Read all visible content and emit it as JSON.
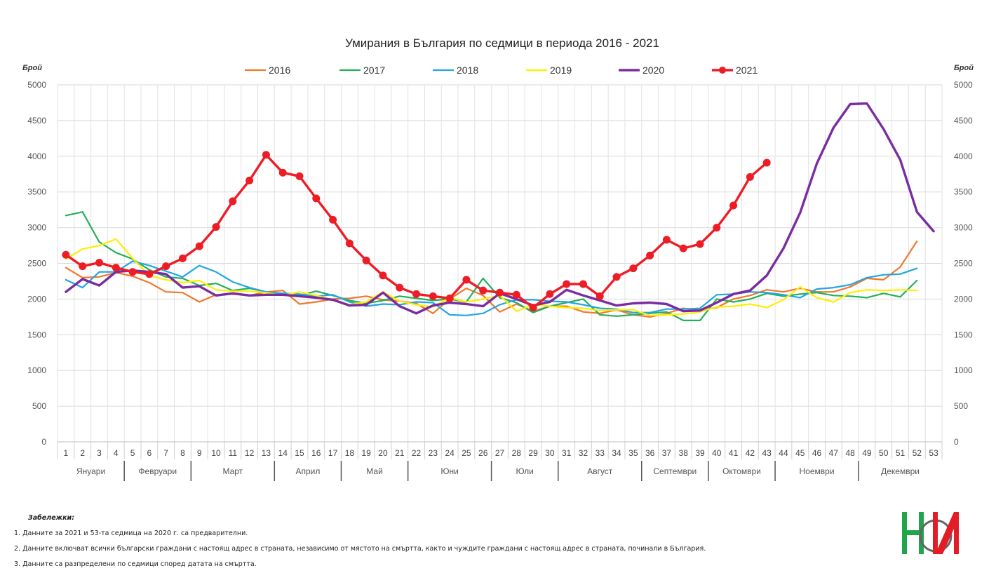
{
  "chart_data": {
    "type": "line",
    "title": "Умирания в България по седмици в периода 2016 - 2021",
    "ylabel_left": "Брой",
    "ylabel_right": "Брой",
    "ylim": [
      0,
      5000
    ],
    "yticks": [
      "0",
      "500",
      "1000",
      "1500",
      "2000",
      "2500",
      "3000",
      "3500",
      "4000",
      "4500",
      "5000"
    ],
    "grid": true,
    "legend_position": "top",
    "x": [
      "1",
      "2",
      "3",
      "4",
      "5",
      "6",
      "7",
      "8",
      "9",
      "10",
      "11",
      "12",
      "13",
      "14",
      "15",
      "16",
      "17",
      "18",
      "19",
      "20",
      "21",
      "22",
      "23",
      "24",
      "25",
      "26",
      "27",
      "28",
      "29",
      "30",
      "31",
      "32",
      "33",
      "34",
      "35",
      "36",
      "37",
      "38",
      "39",
      "40",
      "41",
      "42",
      "43",
      "44",
      "45",
      "46",
      "47",
      "48",
      "49",
      "50",
      "51",
      "52",
      "53"
    ],
    "months": [
      {
        "label": "Януари",
        "from": 1,
        "to": 4
      },
      {
        "label": "Февруари",
        "from": 5,
        "to": 8
      },
      {
        "label": "Март",
        "from": 9,
        "to": 13
      },
      {
        "label": "Април",
        "from": 14,
        "to": 17
      },
      {
        "label": "Май",
        "from": 18,
        "to": 21
      },
      {
        "label": "Юни",
        "from": 22,
        "to": 26
      },
      {
        "label": "Юли",
        "from": 27,
        "to": 30
      },
      {
        "label": "Август",
        "from": 31,
        "to": 35
      },
      {
        "label": "Септември",
        "from": 36,
        "to": 39
      },
      {
        "label": "Октомври",
        "from": 40,
        "to": 43
      },
      {
        "label": "Ноември",
        "from": 44,
        "to": 48
      },
      {
        "label": "Декември",
        "from": 49,
        "to": 53
      }
    ],
    "series": [
      {
        "name": "2016",
        "color": "#f0792b",
        "markers": false,
        "width": 2.2,
        "values": [
          2440,
          2300,
          2310,
          2370,
          2320,
          2230,
          2100,
          2090,
          1960,
          2060,
          2070,
          2050,
          2100,
          2120,
          1930,
          1960,
          2000,
          2010,
          2040,
          1990,
          1970,
          1940,
          1800,
          2000,
          2150,
          2050,
          1820,
          1930,
          1830,
          1900,
          1900,
          1820,
          1800,
          1850,
          1780,
          1750,
          1800,
          1870,
          1840,
          1880,
          2000,
          2050,
          2130,
          2100,
          2150,
          2100,
          2100,
          2170,
          2290,
          2270,
          2450,
          2810,
          null
        ]
      },
      {
        "name": "2017",
        "color": "#22b05a",
        "markers": false,
        "width": 2.2,
        "values": [
          3170,
          3220,
          2800,
          2650,
          2560,
          2410,
          2310,
          2290,
          2190,
          2220,
          2120,
          2150,
          2100,
          2080,
          2050,
          2110,
          2050,
          1980,
          1940,
          1980,
          2040,
          2010,
          1980,
          2000,
          1960,
          2290,
          2020,
          1950,
          1810,
          1900,
          1950,
          2000,
          1780,
          1760,
          1780,
          1800,
          1820,
          1700,
          1700,
          2000,
          1960,
          2000,
          2080,
          2040,
          2070,
          2090,
          2050,
          2040,
          2020,
          2080,
          2030,
          2260,
          null
        ]
      },
      {
        "name": "2018",
        "color": "#21a6e3",
        "markers": false,
        "width": 2.2,
        "values": [
          2270,
          2160,
          2380,
          2380,
          2530,
          2470,
          2390,
          2310,
          2470,
          2380,
          2240,
          2160,
          2100,
          2080,
          2070,
          2040,
          2060,
          1960,
          1900,
          1930,
          1920,
          1960,
          1950,
          1780,
          1770,
          1800,
          1920,
          1990,
          1990,
          1970,
          1960,
          1920,
          1870,
          1860,
          1810,
          1810,
          1860,
          1860,
          1870,
          2060,
          2070,
          2100,
          2090,
          2060,
          2020,
          2140,
          2160,
          2200,
          2300,
          2340,
          2350,
          2430,
          null
        ]
      },
      {
        "name": "2019",
        "color": "#ffee00",
        "markers": false,
        "width": 2.2,
        "values": [
          2560,
          2700,
          2750,
          2840,
          2570,
          2330,
          2270,
          2230,
          2260,
          2130,
          2110,
          2110,
          2090,
          2050,
          2100,
          2050,
          1990,
          1920,
          1960,
          2100,
          1970,
          1920,
          1890,
          2020,
          1960,
          2000,
          2050,
          1830,
          1920,
          1900,
          1880,
          1870,
          1840,
          1850,
          1850,
          1770,
          1780,
          1790,
          1820,
          1890,
          1900,
          1930,
          1880,
          1990,
          2170,
          2020,
          1960,
          2090,
          2130,
          2120,
          2130,
          2120,
          null
        ]
      },
      {
        "name": "2020",
        "color": "#7a2ca0",
        "markers": false,
        "width": 3.4,
        "values": [
          2100,
          2280,
          2190,
          2380,
          2400,
          2380,
          2350,
          2160,
          2180,
          2050,
          2080,
          2050,
          2060,
          2060,
          2040,
          2020,
          1990,
          1910,
          1920,
          2090,
          1900,
          1800,
          1910,
          1950,
          1930,
          1900,
          2080,
          2000,
          1910,
          1960,
          2130,
          2050,
          1980,
          1910,
          1940,
          1950,
          1930,
          1830,
          1840,
          1950,
          2070,
          2120,
          2330,
          2710,
          3210,
          3900,
          4400,
          4730,
          4740,
          4380,
          3950,
          3220,
          2950
        ]
      },
      {
        "name": "2021",
        "color": "#ee1c25",
        "markers": true,
        "width": 3.4,
        "values": [
          2620,
          2460,
          2510,
          2440,
          2380,
          2350,
          2460,
          2570,
          2740,
          3010,
          3370,
          3660,
          4020,
          3770,
          3720,
          3410,
          3110,
          2780,
          2540,
          2330,
          2160,
          2070,
          2040,
          2010,
          2270,
          2120,
          2090,
          2060,
          1880,
          2070,
          2210,
          2210,
          2040,
          2310,
          2430,
          2610,
          2830,
          2710,
          2770,
          3000,
          3310,
          3710,
          3910,
          null,
          null,
          null,
          null,
          null,
          null,
          null,
          null,
          null,
          null
        ]
      }
    ]
  },
  "notes": {
    "header": "Забележки:",
    "items": [
      "1. Данните за 2021 и 53-та седмица на 2020 г. са предварителни.",
      "2. Данните включват всички български граждани с настоящ адрес в страната, независимо от мястото на смъртта, както и чуждите граждани с настоящ адрес в страната, починали в България.",
      "3. Данните са разпределени по седмици според датата на смъртта."
    ]
  },
  "logo": {
    "text": "НИ",
    "colors": [
      "#1fa64a",
      "#e31d25",
      "#555555"
    ]
  }
}
